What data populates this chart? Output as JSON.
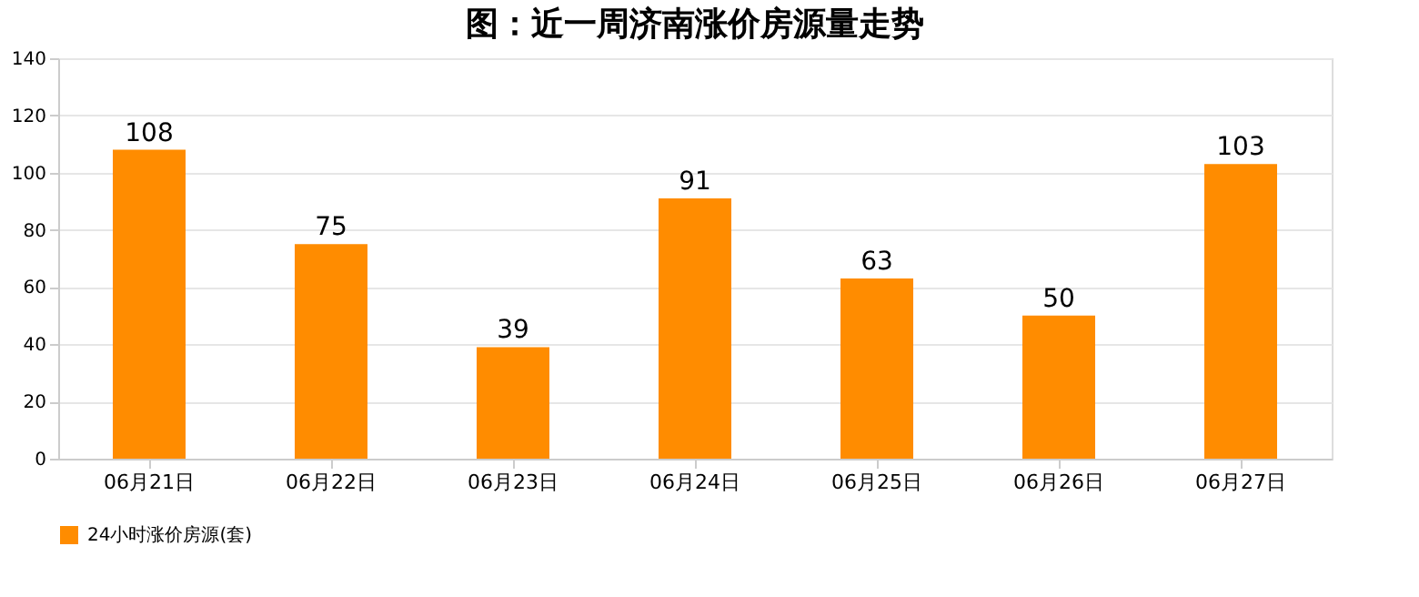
{
  "chart_data": {
    "type": "bar",
    "title": "图：近一周济南涨价房源量走势",
    "categories": [
      "06月21日",
      "06月22日",
      "06月23日",
      "06月24日",
      "06月25日",
      "06月26日",
      "06月27日"
    ],
    "series": [
      {
        "name": "24小时涨价房源(套)",
        "color": "#ff8c00",
        "values": [
          108,
          75,
          39,
          91,
          63,
          50,
          103
        ]
      }
    ],
    "ylim": [
      0,
      140
    ],
    "yticks": [
      0,
      20,
      40,
      60,
      80,
      100,
      120,
      140
    ],
    "grid": "y",
    "legend": "bottom",
    "data_labels": true
  }
}
